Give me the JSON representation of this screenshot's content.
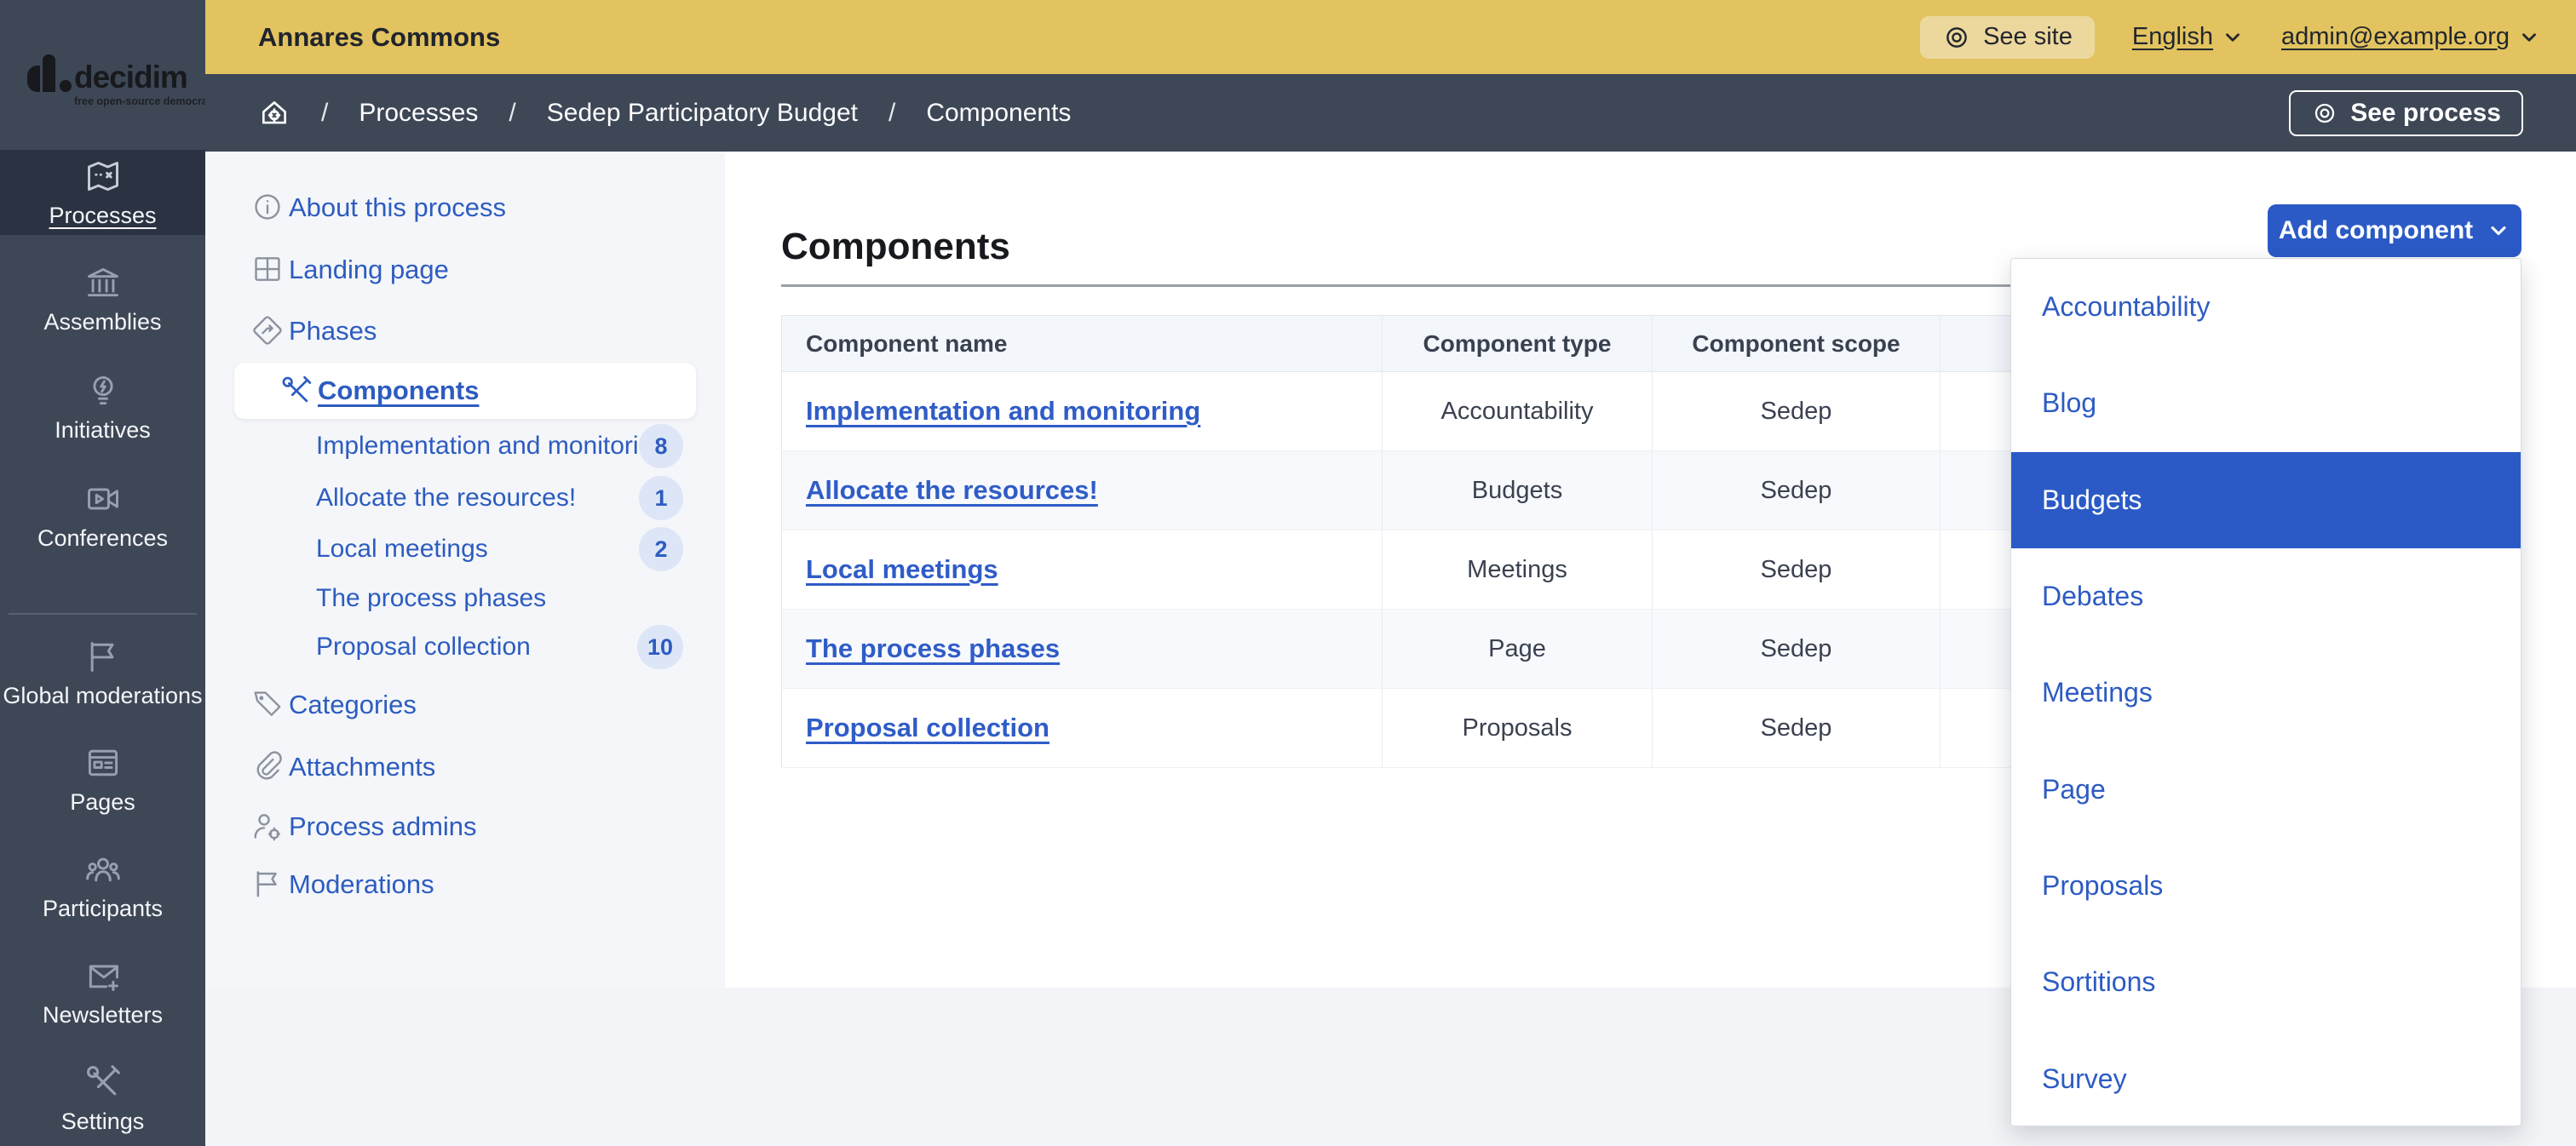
{
  "brand": {
    "name": "decidim",
    "tagline": "free open-source democracy"
  },
  "topbar": {
    "title": "Annares Commons",
    "see_site_label": "See site",
    "language_label": "English",
    "account_label": "admin@example.org"
  },
  "breadcrumb": {
    "separator": "/",
    "items": [
      "Processes",
      "Sedep Participatory Budget",
      "Components"
    ],
    "see_process_label": "See process"
  },
  "primary_sidebar": {
    "items": [
      {
        "label": "Processes",
        "icon": "map-icon",
        "active": true
      },
      {
        "label": "Assemblies",
        "icon": "bank-icon",
        "active": false
      },
      {
        "label": "Initiatives",
        "icon": "lightbulb-icon",
        "active": false
      },
      {
        "label": "Conferences",
        "icon": "video-icon",
        "active": false
      },
      {
        "label": "Global moderations",
        "icon": "flag-icon",
        "active": false,
        "group": 2
      },
      {
        "label": "Pages",
        "icon": "article-icon",
        "active": false,
        "group": 2
      },
      {
        "label": "Participants",
        "icon": "group-icon",
        "active": false,
        "group": 2
      },
      {
        "label": "Newsletters",
        "icon": "mail-add-icon",
        "active": false,
        "group": 2
      },
      {
        "label": "Settings",
        "icon": "tools-icon",
        "active": false,
        "group": 2
      }
    ]
  },
  "secondary_sidebar": {
    "items": [
      {
        "label": "About this process",
        "icon": "info-icon",
        "type": "item"
      },
      {
        "label": "Landing page",
        "icon": "layout-icon",
        "type": "item"
      },
      {
        "label": "Phases",
        "icon": "direction-icon",
        "type": "item"
      },
      {
        "label": "Components",
        "icon": "tools-blue-icon",
        "type": "active"
      },
      {
        "label": "Implementation and monitoring",
        "type": "sub",
        "badge": "8"
      },
      {
        "label": "Allocate the resources!",
        "type": "sub",
        "badge": "1"
      },
      {
        "label": "Local meetings",
        "type": "sub",
        "badge": "2"
      },
      {
        "label": "The process phases",
        "type": "sub",
        "badge": ""
      },
      {
        "label": "Proposal collection",
        "type": "sub",
        "badge": "10"
      },
      {
        "label": "Categories",
        "icon": "tag-icon",
        "type": "item"
      },
      {
        "label": "Attachments",
        "icon": "paperclip-icon",
        "type": "item"
      },
      {
        "label": "Process admins",
        "icon": "user-gear-icon",
        "type": "item"
      },
      {
        "label": "Moderations",
        "icon": "flag-gray-icon",
        "type": "item"
      }
    ]
  },
  "main": {
    "title": "Components",
    "add_component_label": "Add component",
    "table": {
      "headers": [
        "Component name",
        "Component type",
        "Component scope"
      ],
      "rows": [
        {
          "name": "Implementation and monitoring",
          "type": "Accountability",
          "scope": "Sedep"
        },
        {
          "name": "Allocate the resources!",
          "type": "Budgets",
          "scope": "Sedep"
        },
        {
          "name": "Local meetings",
          "type": "Meetings",
          "scope": "Sedep"
        },
        {
          "name": "The process phases",
          "type": "Page",
          "scope": "Sedep"
        },
        {
          "name": "Proposal collection",
          "type": "Proposals",
          "scope": "Sedep"
        }
      ]
    }
  },
  "add_component_menu": {
    "items": [
      "Accountability",
      "Blog",
      "Budgets",
      "Debates",
      "Meetings",
      "Page",
      "Proposals",
      "Sortitions",
      "Survey"
    ],
    "selected": "Budgets"
  },
  "colors": {
    "topbar_yellow": "#e2c35f",
    "slate_dark": "#3e4756",
    "slate_darker": "#2b3342",
    "accent_blue": "#2b5ac6",
    "link_blue": "#2d5cc0",
    "badge_bg": "#dde6f7",
    "sidebar_bg": "#f4f6f9",
    "table_header_bg": "#f3f6fb",
    "row_alt_bg": "#f7f9fc",
    "page_bg": "#f3f4f7"
  }
}
